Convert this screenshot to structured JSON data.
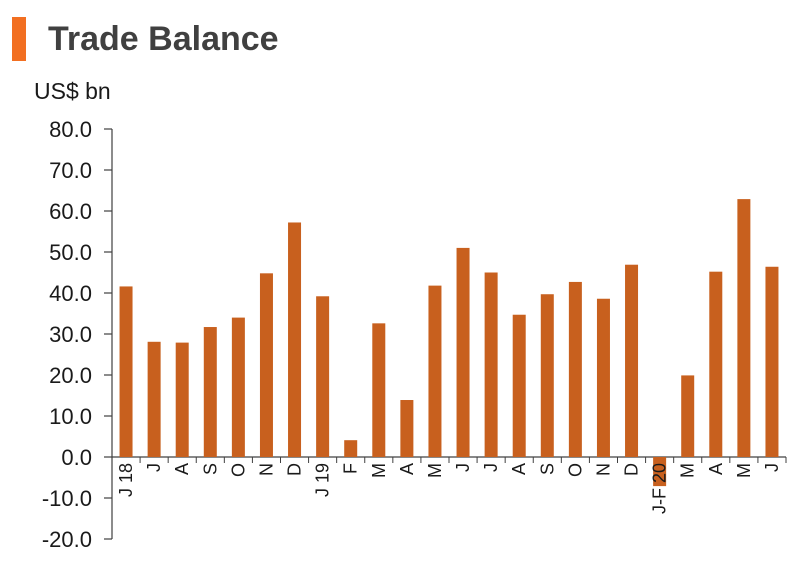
{
  "colors": {
    "accent": "#f26f21",
    "bar": "#c8601e",
    "axis": "#404040",
    "title": "#404040"
  },
  "chart_data": {
    "type": "bar",
    "title": "Trade Balance",
    "ylabel": "US$ bn",
    "xlabel": "",
    "ylim": [
      -20,
      80
    ],
    "yticks": [
      "80.0",
      "70.0",
      "60.0",
      "50.0",
      "40.0",
      "30.0",
      "20.0",
      "10.0",
      "0.0",
      "-10.0",
      "-20.0"
    ],
    "categories": [
      "J 18",
      "J",
      "A",
      "S",
      "O",
      "N",
      "D",
      "J 19",
      "F",
      "M",
      "A",
      "M",
      "J",
      "J",
      "A",
      "S",
      "O",
      "N",
      "D",
      "J-F 20",
      "M",
      "A",
      "M",
      "J"
    ],
    "values": [
      41.6,
      28.1,
      27.9,
      31.7,
      34.0,
      44.8,
      57.2,
      39.2,
      4.1,
      32.6,
      13.9,
      41.8,
      51.0,
      45.0,
      34.7,
      39.7,
      42.7,
      38.6,
      46.9,
      -7.1,
      19.9,
      45.2,
      62.9,
      46.4
    ],
    "grid": false,
    "legend": "none"
  }
}
